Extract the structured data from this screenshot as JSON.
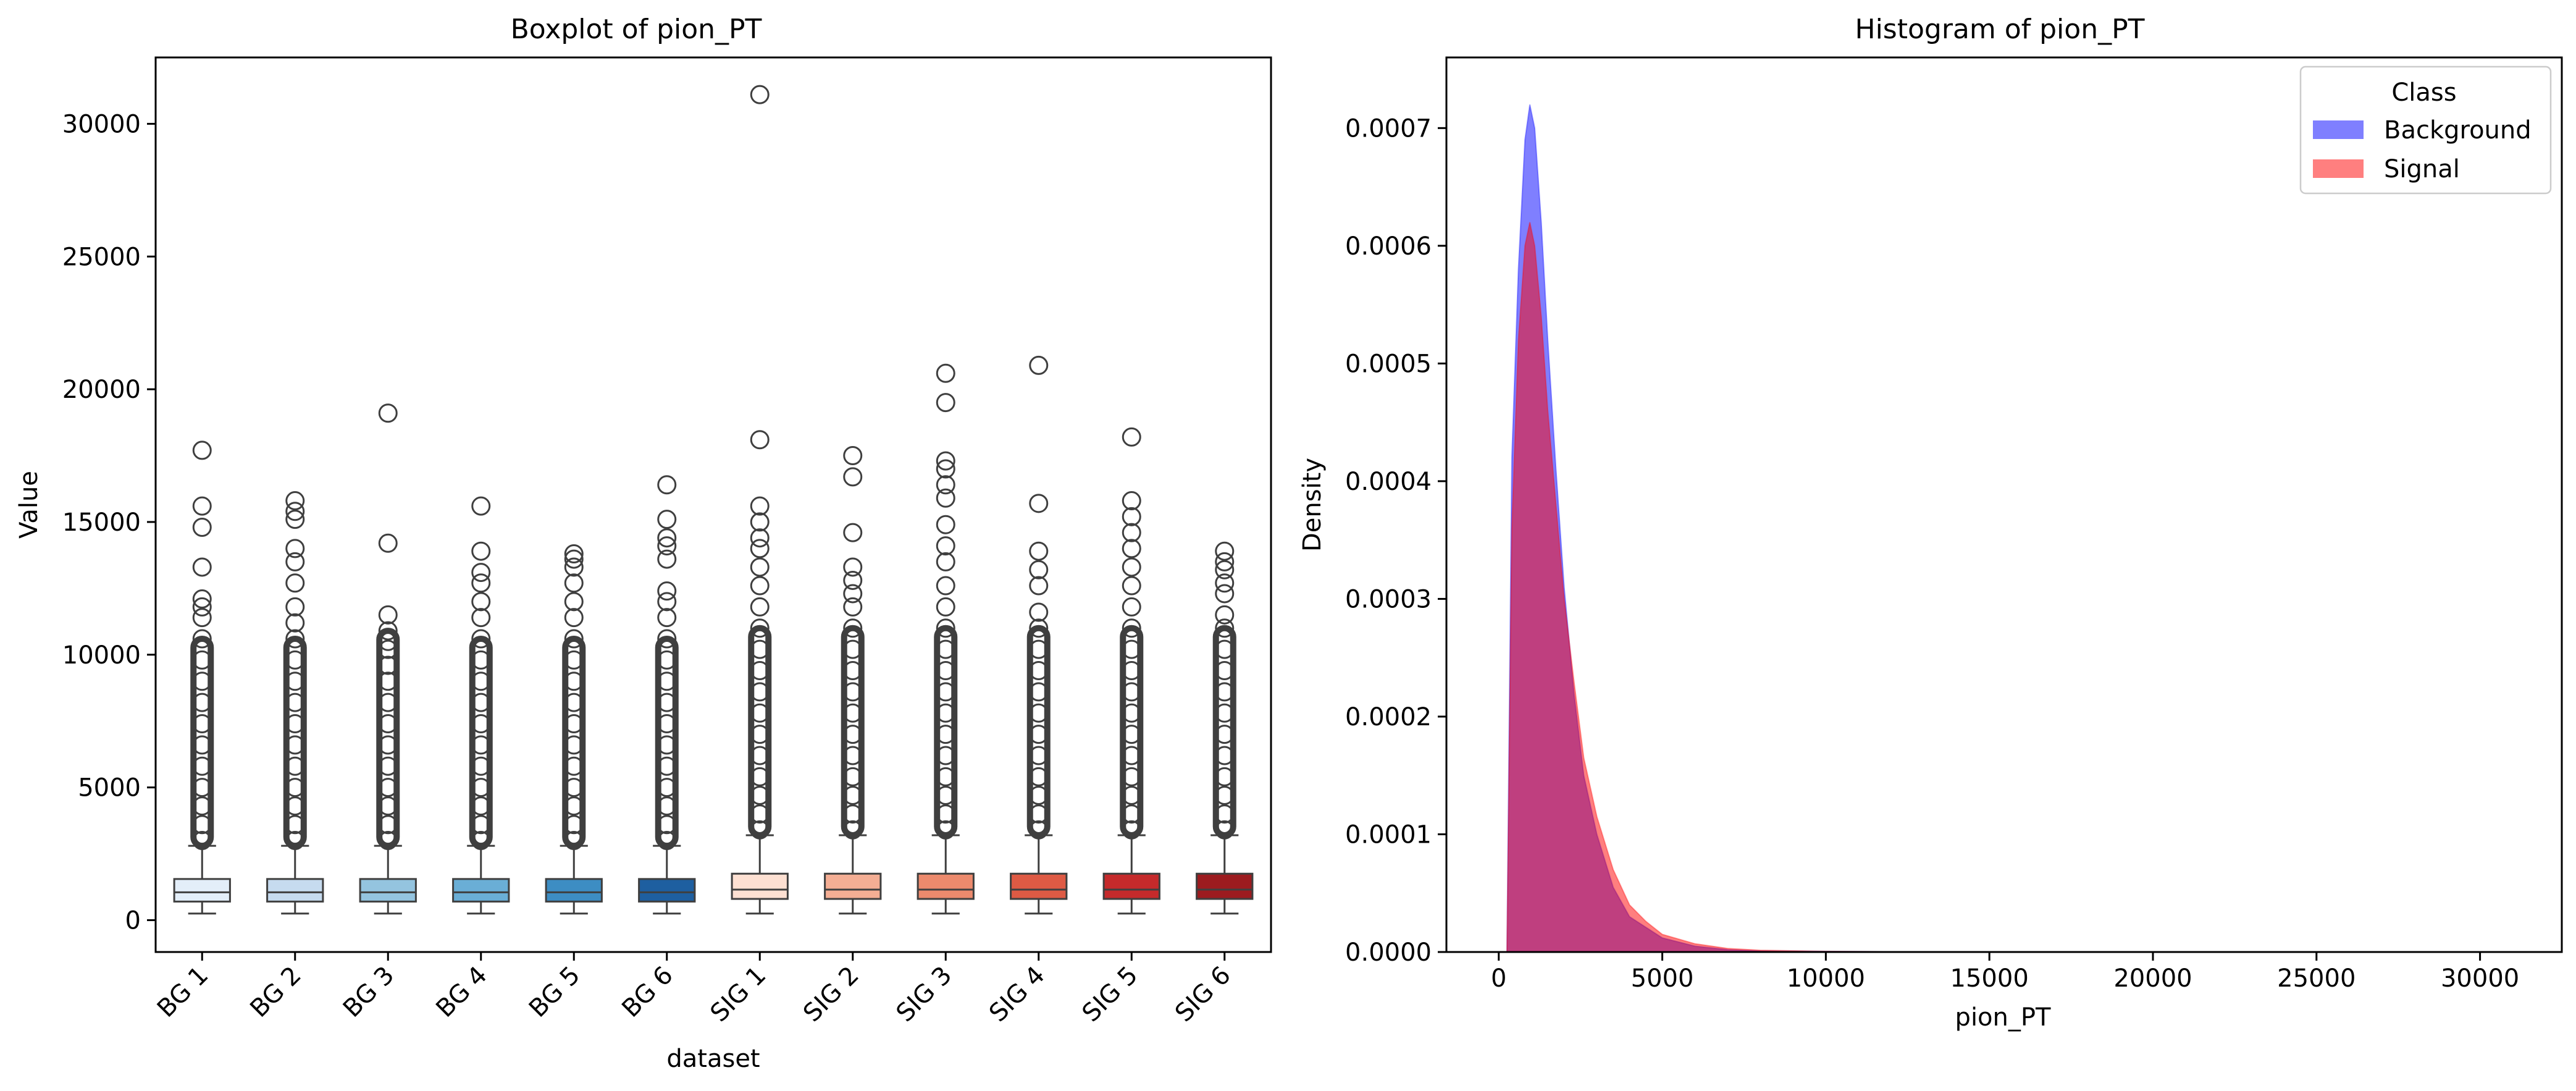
{
  "chart_data": [
    {
      "type": "box",
      "title": "Boxplot of pion_PT",
      "xlabel": "dataset",
      "ylabel": "Value",
      "ylim": [
        -1200,
        32500
      ],
      "yticks": [
        0,
        5000,
        10000,
        15000,
        20000,
        25000,
        30000
      ],
      "categories": [
        "BG 1",
        "BG 2",
        "BG 3",
        "BG 4",
        "BG 5",
        "BG 6",
        "SIG 1",
        "SIG 2",
        "SIG 3",
        "SIG 4",
        "SIG 5",
        "SIG 6"
      ],
      "colors": [
        "#e3eef9",
        "#c6dbef",
        "#94c4df",
        "#6aaed6",
        "#3d8dc3",
        "#1e5fa0",
        "#fde0d2",
        "#f4ae94",
        "#ec8a6d",
        "#de5a44",
        "#c52a2b",
        "#9c1b1f"
      ],
      "boxes": [
        {
          "whislo": 250,
          "q1": 700,
          "med": 1050,
          "q3": 1550,
          "whishi": 2800,
          "fliers": [
            3000,
            3600,
            4300,
            5000,
            5800,
            6600,
            7400,
            8200,
            9000,
            9800,
            10600,
            11400,
            11800,
            12100,
            13300,
            14800,
            15600,
            17700
          ]
        },
        {
          "whislo": 250,
          "q1": 700,
          "med": 1050,
          "q3": 1550,
          "whishi": 2800,
          "fliers": [
            3000,
            3600,
            4300,
            5000,
            5800,
            6600,
            7400,
            8200,
            9000,
            9800,
            10600,
            11200,
            11800,
            12700,
            13500,
            14000,
            15100,
            15400,
            15800
          ]
        },
        {
          "whislo": 250,
          "q1": 700,
          "med": 1050,
          "q3": 1550,
          "whishi": 2800,
          "fliers": [
            3000,
            3600,
            4300,
            5000,
            5800,
            6600,
            7400,
            8200,
            9000,
            9600,
            10200,
            10500,
            10900,
            11500,
            14200,
            19100
          ]
        },
        {
          "whislo": 250,
          "q1": 700,
          "med": 1050,
          "q3": 1550,
          "whishi": 2800,
          "fliers": [
            3000,
            3600,
            4300,
            5000,
            5800,
            6600,
            7400,
            8200,
            9000,
            9800,
            10600,
            11400,
            12000,
            12700,
            13100,
            13900,
            15600
          ]
        },
        {
          "whislo": 250,
          "q1": 700,
          "med": 1050,
          "q3": 1550,
          "whishi": 2800,
          "fliers": [
            3000,
            3600,
            4300,
            5000,
            5800,
            6600,
            7400,
            8200,
            9000,
            9800,
            10600,
            11400,
            12000,
            12700,
            13300,
            13600,
            13800
          ]
        },
        {
          "whislo": 250,
          "q1": 700,
          "med": 1050,
          "q3": 1550,
          "whishi": 2800,
          "fliers": [
            3000,
            3600,
            4300,
            5000,
            5800,
            6600,
            7400,
            8200,
            9000,
            9800,
            10600,
            11400,
            12000,
            12400,
            13600,
            14100,
            14400,
            15100,
            16400
          ]
        },
        {
          "whislo": 250,
          "q1": 800,
          "med": 1150,
          "q3": 1750,
          "whishi": 3200,
          "fliers": [
            3400,
            4000,
            4700,
            5400,
            6200,
            7000,
            7800,
            8600,
            9400,
            10200,
            11000,
            11800,
            12600,
            13300,
            14000,
            14400,
            15000,
            15600,
            18100,
            31100
          ]
        },
        {
          "whislo": 250,
          "q1": 800,
          "med": 1150,
          "q3": 1750,
          "whishi": 3200,
          "fliers": [
            3400,
            4000,
            4700,
            5400,
            6200,
            7000,
            7800,
            8600,
            9400,
            10200,
            11000,
            11800,
            12300,
            12800,
            13300,
            14600,
            16700,
            17500
          ]
        },
        {
          "whislo": 250,
          "q1": 800,
          "med": 1150,
          "q3": 1750,
          "whishi": 3200,
          "fliers": [
            3400,
            4000,
            4700,
            5400,
            6200,
            7000,
            7800,
            8600,
            9400,
            10200,
            11000,
            11800,
            12600,
            13500,
            14100,
            14900,
            15900,
            16400,
            17000,
            17300,
            19500,
            20600
          ]
        },
        {
          "whislo": 250,
          "q1": 800,
          "med": 1150,
          "q3": 1750,
          "whishi": 3200,
          "fliers": [
            3400,
            4000,
            4700,
            5400,
            6200,
            7000,
            7800,
            8600,
            9400,
            10200,
            11000,
            11600,
            12600,
            13200,
            13900,
            15700,
            20900
          ]
        },
        {
          "whislo": 250,
          "q1": 800,
          "med": 1150,
          "q3": 1750,
          "whishi": 3200,
          "fliers": [
            3400,
            4000,
            4700,
            5400,
            6200,
            7000,
            7800,
            8600,
            9400,
            10200,
            11000,
            11800,
            12600,
            13300,
            14000,
            14600,
            15200,
            15800,
            18200
          ]
        },
        {
          "whislo": 250,
          "q1": 800,
          "med": 1150,
          "q3": 1750,
          "whishi": 3200,
          "fliers": [
            3400,
            4000,
            4700,
            5400,
            6200,
            7000,
            7800,
            8600,
            9400,
            10200,
            11000,
            11500,
            12300,
            12700,
            13200,
            13500,
            13900
          ]
        }
      ]
    },
    {
      "type": "histogram",
      "title": "Histogram of pion_PT",
      "xlabel": "pion_PT",
      "ylabel": "Density",
      "xlim": [
        -1600,
        32500
      ],
      "ylim": [
        0,
        0.00076
      ],
      "xticks": [
        0,
        5000,
        10000,
        15000,
        20000,
        25000,
        30000
      ],
      "yticks": [
        0.0,
        0.0001,
        0.0002,
        0.0003,
        0.0004,
        0.0005,
        0.0006,
        0.0007
      ],
      "ytick_labels": [
        "0.0000",
        "0.0001",
        "0.0002",
        "0.0003",
        "0.0004",
        "0.0005",
        "0.0006",
        "0.0007"
      ],
      "legend": {
        "title": "Class",
        "position": "top-right"
      },
      "series": [
        {
          "name": "Background",
          "color": "#0000ff",
          "alpha": 0.5,
          "x": [
            250,
            400,
            600,
            800,
            950,
            1100,
            1300,
            1500,
            1750,
            2000,
            2300,
            2600,
            3000,
            3500,
            4000,
            5000,
            6000,
            7000,
            8000,
            10000,
            12000,
            15000
          ],
          "y": [
            0.0,
            0.00042,
            0.00058,
            0.00069,
            0.00072,
            0.0007,
            0.00062,
            0.00052,
            0.00041,
            0.00031,
            0.00022,
            0.00015,
            0.0001,
            5.5e-05,
            3e-05,
            1.2e-05,
            5e-06,
            2e-06,
            1e-06,
            5e-07,
            2e-07,
            0.0
          ]
        },
        {
          "name": "Signal",
          "color": "#ff0000",
          "alpha": 0.5,
          "x": [
            250,
            400,
            600,
            800,
            950,
            1100,
            1300,
            1500,
            1750,
            2000,
            2300,
            2600,
            3000,
            3500,
            4000,
            4500,
            5000,
            6000,
            7000,
            8000,
            10000,
            12000,
            15000,
            20000,
            31000
          ],
          "y": [
            0.0,
            0.00036,
            0.00052,
            0.0006,
            0.00062,
            0.0006,
            0.00054,
            0.00046,
            0.00038,
            0.0003,
            0.00023,
            0.000165,
            0.000115,
            7e-05,
            4e-05,
            2.6e-05,
            1.5e-05,
            7e-06,
            3e-06,
            1.5e-06,
            6e-07,
            2e-07,
            1e-07,
            5e-08,
            0.0
          ]
        }
      ]
    }
  ]
}
